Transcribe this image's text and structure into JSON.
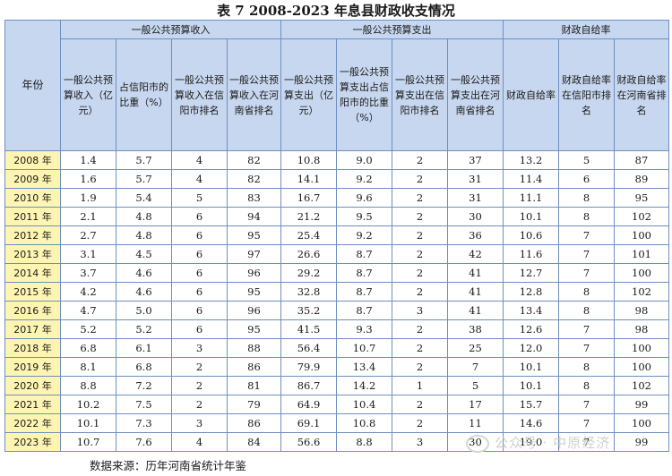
{
  "title": "表 7  2008-2023 年息县财政收支情况",
  "groups": {
    "income": "一般公共预算收入",
    "expense": "一般公共预算支出",
    "self": "财政自给率"
  },
  "columns": {
    "year": "年份",
    "c1": "一般公共预算收入（亿元）",
    "c2": "占信阳市的比重（%）",
    "c3": "一般公共预算收入在信阳市排名",
    "c4": "一般公共预算收入在河南省排名",
    "c5": "一般公共预算支出（亿元）",
    "c6": "一般公共预算支出占信阳市的比重（%）",
    "c7": "一般公共预算支出在信阳市排名",
    "c8": "一般公共预算支出在河南省排名",
    "c9": "财政自给率",
    "c10": "财政自给率在信阳市排名",
    "c11": "财政自给率在河南省排名"
  },
  "rows": [
    [
      "2008 年",
      "1.4",
      "5.7",
      "4",
      "82",
      "10.8",
      "9.0",
      "2",
      "37",
      "13.2",
      "5",
      "87"
    ],
    [
      "2009 年",
      "1.6",
      "5.7",
      "4",
      "82",
      "14.1",
      "9.2",
      "2",
      "31",
      "11.4",
      "6",
      "89"
    ],
    [
      "2010 年",
      "1.9",
      "5.4",
      "5",
      "83",
      "16.7",
      "9.6",
      "2",
      "31",
      "11.1",
      "8",
      "95"
    ],
    [
      "2011 年",
      "2.1",
      "4.8",
      "6",
      "94",
      "21.2",
      "9.5",
      "2",
      "30",
      "10.1",
      "8",
      "102"
    ],
    [
      "2012 年",
      "2.7",
      "4.8",
      "6",
      "95",
      "25.4",
      "9.2",
      "2",
      "36",
      "10.6",
      "7",
      "100"
    ],
    [
      "2013 年",
      "3.1",
      "4.5",
      "6",
      "97",
      "26.6",
      "8.7",
      "2",
      "42",
      "11.6",
      "7",
      "101"
    ],
    [
      "2014 年",
      "3.7",
      "4.6",
      "6",
      "96",
      "29.2",
      "8.7",
      "2",
      "41",
      "12.7",
      "7",
      "100"
    ],
    [
      "2015 年",
      "4.2",
      "4.6",
      "6",
      "95",
      "32.8",
      "8.7",
      "2",
      "41",
      "12.8",
      "8",
      "102"
    ],
    [
      "2016 年",
      "4.7",
      "5.0",
      "6",
      "96",
      "35.2",
      "8.7",
      "3",
      "41",
      "13.4",
      "8",
      "98"
    ],
    [
      "2017 年",
      "5.2",
      "5.2",
      "6",
      "95",
      "41.5",
      "9.3",
      "2",
      "38",
      "12.6",
      "7",
      "98"
    ],
    [
      "2018 年",
      "6.8",
      "6.1",
      "3",
      "88",
      "56.4",
      "10.7",
      "2",
      "25",
      "12.0",
      "7",
      "100"
    ],
    [
      "2019 年",
      "8.1",
      "6.8",
      "2",
      "86",
      "79.9",
      "13.4",
      "2",
      "7",
      "10.1",
      "8",
      "100"
    ],
    [
      "2020 年",
      "8.8",
      "7.2",
      "2",
      "81",
      "86.7",
      "14.2",
      "1",
      "5",
      "10.1",
      "8",
      "102"
    ],
    [
      "2021 年",
      "10.2",
      "7.5",
      "2",
      "79",
      "64.9",
      "10.4",
      "2",
      "17",
      "15.7",
      "7",
      "99"
    ],
    [
      "2022 年",
      "10.1",
      "7.3",
      "3",
      "86",
      "69.1",
      "10.8",
      "2",
      "11",
      "14.6",
      "7",
      "100"
    ],
    [
      "2023 年",
      "10.7",
      "7.6",
      "4",
      "84",
      "56.6",
      "8.8",
      "3",
      "30",
      "19.0",
      "7",
      "99"
    ]
  ],
  "source": "数据来源：历年河南省统计年鉴",
  "watermark": "公众号 · 中原经济"
}
